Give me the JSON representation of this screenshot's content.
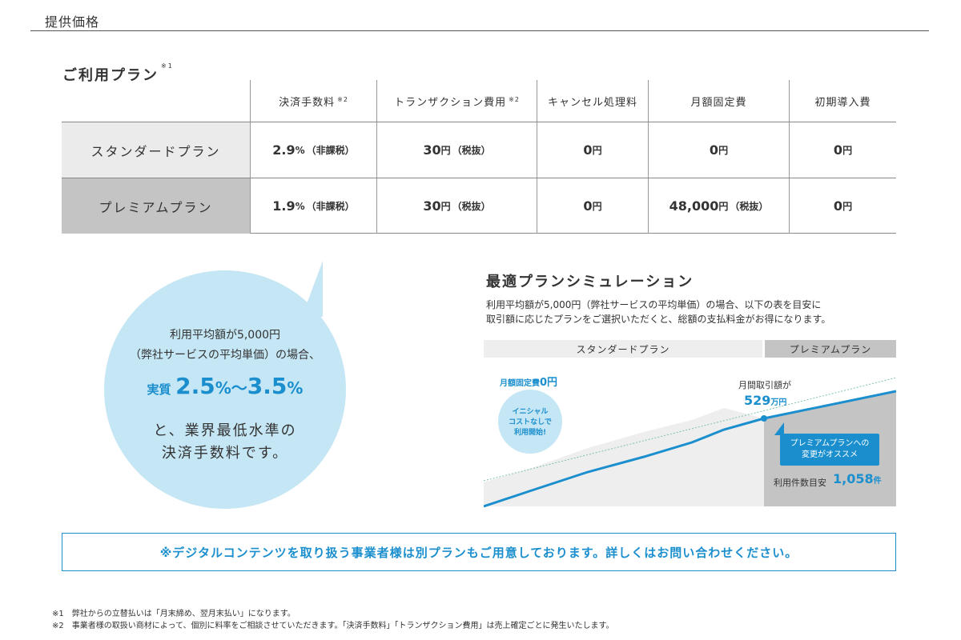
{
  "header": {
    "title": "提供価格"
  },
  "plans": {
    "heading": "ご利用プラン",
    "heading_mark": "※1",
    "columns": [
      {
        "label": "決済手数料",
        "mark": "※2"
      },
      {
        "label": "トランザクション費用",
        "mark": "※2"
      },
      {
        "label": "キャンセル処理料",
        "mark": ""
      },
      {
        "label": "月額固定費",
        "mark": ""
      },
      {
        "label": "初期導入費",
        "mark": ""
      }
    ],
    "rows": [
      {
        "name": "スタンダードプラン",
        "fee": {
          "value": "2.9",
          "unit": "%",
          "tax": "（非課税）"
        },
        "transaction": {
          "value": "30",
          "unit": "円",
          "tax": "（税抜）"
        },
        "cancel": {
          "value": "0",
          "unit": "円"
        },
        "monthly": {
          "value": "0",
          "unit": "円",
          "tax": ""
        },
        "initial": {
          "value": "0",
          "unit": "円"
        }
      },
      {
        "name": "プレミアムプラン",
        "fee": {
          "value": "1.9",
          "unit": "%",
          "tax": "（非課税）"
        },
        "transaction": {
          "value": "30",
          "unit": "円",
          "tax": "（税抜）"
        },
        "cancel": {
          "value": "0",
          "unit": "円"
        },
        "monthly": {
          "value": "48,000",
          "unit": "円",
          "tax": "（税抜）"
        },
        "initial": {
          "value": "0",
          "unit": "円"
        }
      }
    ]
  },
  "bubble": {
    "line1": "利用平均額が5,000円",
    "line2": "（弊社サービスの平均単価）の場合、",
    "prefix": "実質",
    "low": "2.5",
    "sep": "〜",
    "high": "3.5",
    "pct": "%",
    "line4": "と、業界最低水準の",
    "line5": "決済手数料です。"
  },
  "simulation": {
    "title": "最適プランシミュレーション",
    "desc1": "利用平均額が5,000円（弊社サービスの平均単価）の場合、以下の表を目安に",
    "desc2": "取引額に応じたプランをご選択いただくと、総額の支払料金がお得になります。",
    "standard_label": "スタンダードプラン",
    "premium_label": "プレミアムプラン",
    "fixed_label": "月額固定費",
    "fixed_value": "0円",
    "initial_1": "イニシャル",
    "initial_2": "コストなしで",
    "initial_3": "利用開始!",
    "monthly_label": "月間取引額が",
    "monthly_value": "529",
    "monthly_unit": "万円",
    "recommend_1": "プレミアムプランへの",
    "recommend_2": "変更がオススメ",
    "count_label": "利用件数目安",
    "count_value": "1,058",
    "count_unit": "件",
    "colors": {
      "accent": "#1b8fce",
      "light": "#c5e6f4",
      "std_area": "#eeeeee",
      "prm_area": "#c4c4c4"
    }
  },
  "note": "※デジタルコンテンツを取り扱う事業者様は別プランもご用意しております。詳しくはお問い合わせください。",
  "footnotes": [
    "※1　弊社からの立替払いは「月末締め、翌月末払い」になります。",
    "※2　事業者様の取扱い商材によって、個別に料率をご相談させていただきます。「決済手数料」「トランザクション費用」は売上確定ごとに発生いたします。"
  ]
}
